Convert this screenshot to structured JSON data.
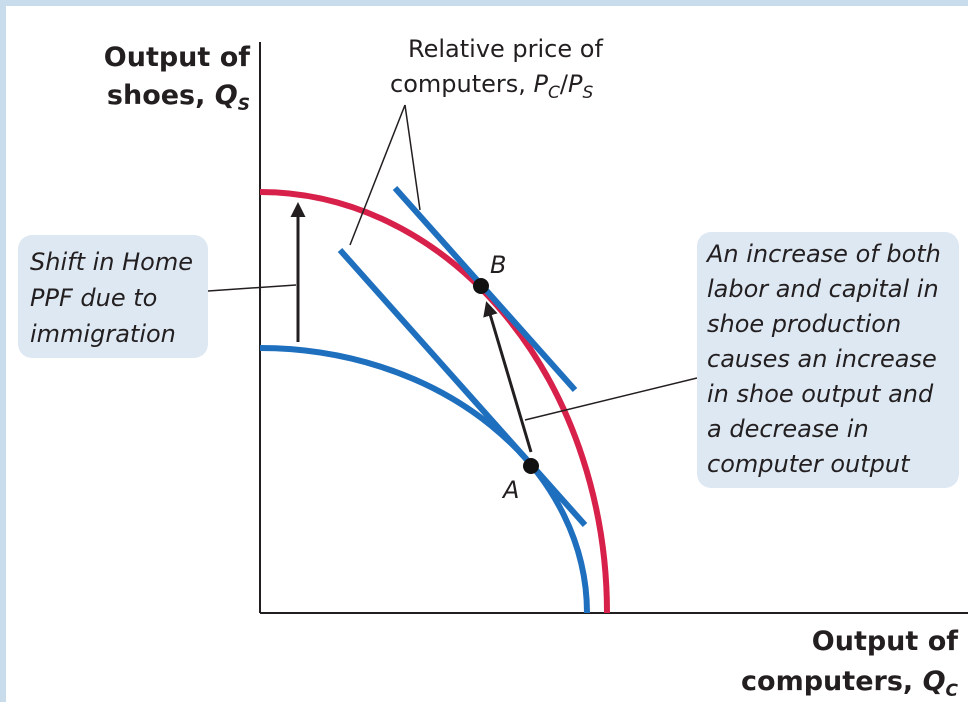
{
  "y_axis_label": {
    "line1": "Output of",
    "line2": "shoes,",
    "symbol": "Q",
    "subscript": "S"
  },
  "x_axis_label": {
    "line1": "Output of",
    "line2": "computers,",
    "symbol": "Q",
    "subscript": "C"
  },
  "price_label": {
    "line1": "Relative price of",
    "line2": "computers,",
    "symbol_num": "P",
    "sub_num": "C",
    "slash": "/",
    "symbol_den": "P",
    "sub_den": "S"
  },
  "points": {
    "a": "A",
    "b": "B"
  },
  "left_note": {
    "lines": [
      "Shift in Home",
      "PPF due to",
      "immigration"
    ]
  },
  "right_note": {
    "lines": [
      "An increase of both",
      "labor and capital in",
      "shoe production",
      "causes an increase",
      "in shoe output and",
      "a decrease in",
      "computer output"
    ]
  }
}
